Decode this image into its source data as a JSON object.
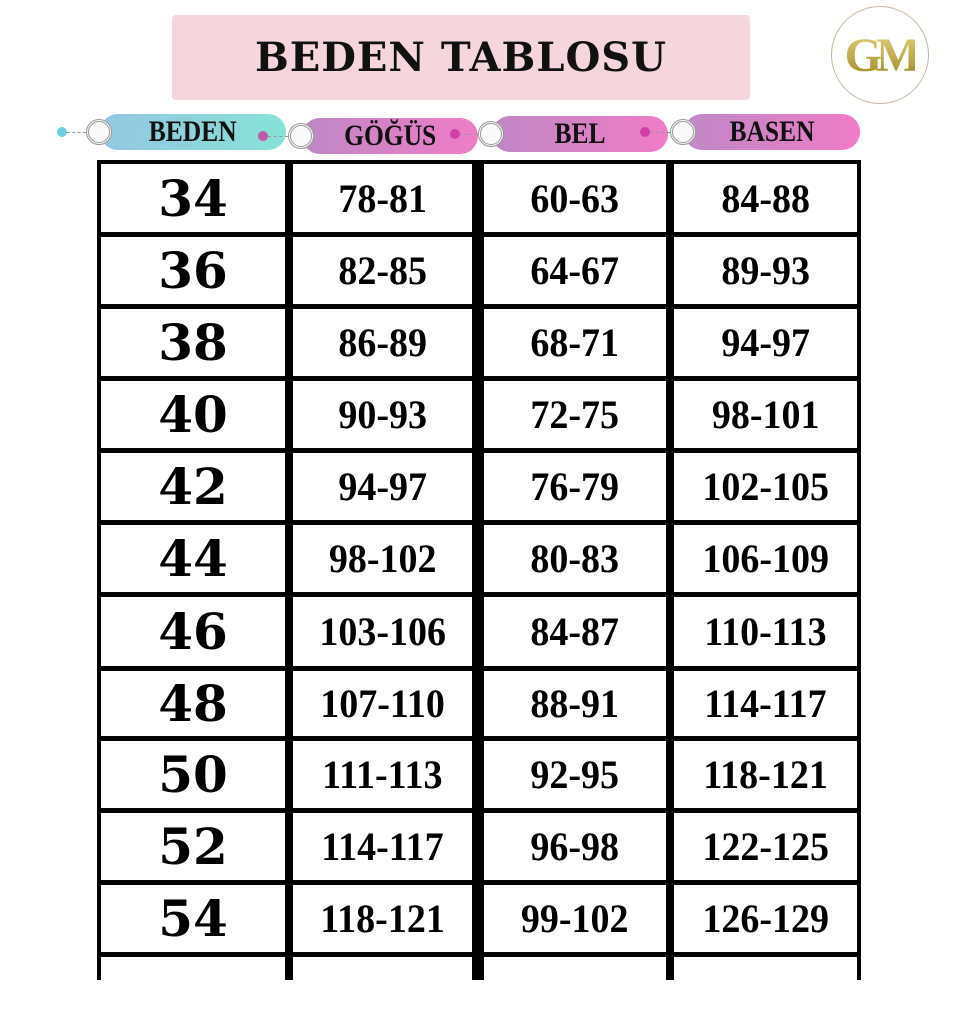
{
  "title": "BEDEN TABLOSU",
  "logo_text": "GM",
  "headers": [
    {
      "label": "BEDEN",
      "gradient": [
        "#94c6e2",
        "#86e2d6"
      ]
    },
    {
      "label": "GÖĞÜS",
      "gradient": [
        "#bf88c6",
        "#f07cc6"
      ]
    },
    {
      "label": "BEL",
      "gradient": [
        "#bf88c6",
        "#f07cc6"
      ]
    },
    {
      "label": "BASEN",
      "gradient": [
        "#bf88c6",
        "#f07cc6"
      ]
    }
  ],
  "rows": [
    [
      "34",
      "78-81",
      "60-63",
      "84-88"
    ],
    [
      "36",
      "82-85",
      "64-67",
      "89-93"
    ],
    [
      "38",
      "86-89",
      "68-71",
      "94-97"
    ],
    [
      "40",
      "90-93",
      "72-75",
      "98-101"
    ],
    [
      "42",
      "94-97",
      "76-79",
      "102-105"
    ],
    [
      "44",
      "98-102",
      "80-83",
      "106-109"
    ],
    [
      "46",
      "103-106",
      "84-87",
      "110-113"
    ],
    [
      "48",
      "107-110",
      "88-91",
      "114-117"
    ],
    [
      "50",
      "111-113",
      "92-95",
      "118-121"
    ],
    [
      "52",
      "114-117",
      "96-98",
      "122-125"
    ],
    [
      "54",
      "118-121",
      "99-102",
      "126-129"
    ],
    [
      "",
      "",
      "",
      ""
    ]
  ]
}
